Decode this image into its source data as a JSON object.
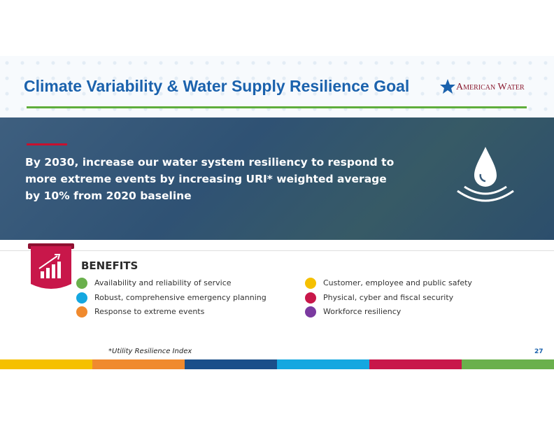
{
  "header": {
    "title": "Climate Variability & Water Supply Resilience Goal",
    "logo": "American Water"
  },
  "goal": "By 2030, increase our water system resiliency to respond to more extreme events by increasing URI* weighted average by 10% from 2020 baseline",
  "benefits": {
    "heading": "BENEFITS",
    "items": [
      {
        "label": "Availability and reliability of service",
        "color": "#6ab04c"
      },
      {
        "label": "Robust, comprehensive emergency planning",
        "color": "#14a7e0"
      },
      {
        "label": "Response to extreme events",
        "color": "#f08a2e"
      },
      {
        "label": "Customer, employee and public safety",
        "color": "#f5c000"
      },
      {
        "label": "Physical, cyber and fiscal security",
        "color": "#c8174a"
      },
      {
        "label": "Workforce resiliency",
        "color": "#7b3aa0"
      }
    ]
  },
  "footnote": "*Utility Resilience Index",
  "page_number": "27"
}
